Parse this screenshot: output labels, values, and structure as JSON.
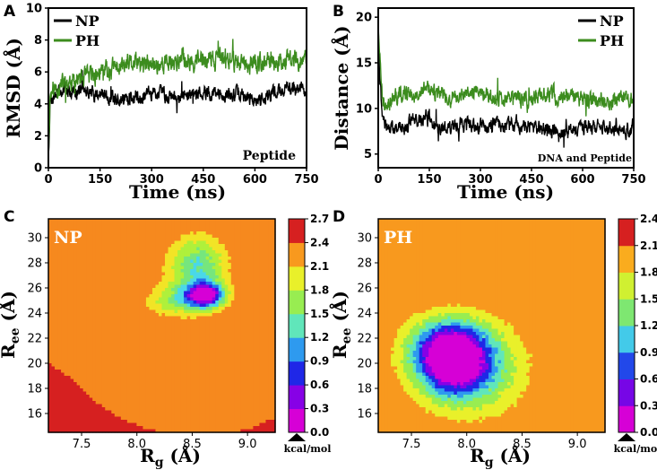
{
  "panels": {
    "A": "A",
    "B": "B",
    "C": "C",
    "D": "D"
  },
  "chart_data": [
    {
      "id": "A",
      "type": "line",
      "xlabel": "Time (ns)",
      "ylabel": "RMSD (Å)",
      "xlim": [
        0,
        750
      ],
      "ylim": [
        0,
        10
      ],
      "xticks": [
        0,
        150,
        300,
        450,
        600,
        750
      ],
      "yticks": [
        0,
        2,
        4,
        6,
        8,
        10
      ],
      "annotation": "Peptide",
      "legend_position": "top-left",
      "series": [
        {
          "name": "NP",
          "color": "#000000",
          "anchors": [
            [
              0,
              0.4
            ],
            [
              5,
              4.2
            ],
            [
              20,
              4.6
            ],
            [
              50,
              4.9
            ],
            [
              100,
              4.8
            ],
            [
              150,
              4.6
            ],
            [
              200,
              4.3
            ],
            [
              250,
              4.4
            ],
            [
              300,
              4.7
            ],
            [
              350,
              4.6
            ],
            [
              400,
              4.5
            ],
            [
              450,
              4.8
            ],
            [
              500,
              4.5
            ],
            [
              550,
              4.6
            ],
            [
              600,
              4.2
            ],
            [
              650,
              4.7
            ],
            [
              700,
              5.0
            ],
            [
              750,
              4.9
            ]
          ],
          "noise": 0.45,
          "seed": 7
        },
        {
          "name": "PH",
          "color": "#3c8c1e",
          "anchors": [
            [
              0,
              0.6
            ],
            [
              5,
              4.6
            ],
            [
              20,
              5.0
            ],
            [
              50,
              5.3
            ],
            [
              100,
              5.6
            ],
            [
              150,
              5.9
            ],
            [
              200,
              6.3
            ],
            [
              250,
              6.5
            ],
            [
              300,
              6.4
            ],
            [
              350,
              6.6
            ],
            [
              400,
              6.8
            ],
            [
              450,
              6.7
            ],
            [
              500,
              6.9
            ],
            [
              550,
              6.6
            ],
            [
              600,
              6.5
            ],
            [
              650,
              6.6
            ],
            [
              700,
              6.8
            ],
            [
              750,
              6.7
            ]
          ],
          "noise": 0.6,
          "seed": 11
        }
      ]
    },
    {
      "id": "B",
      "type": "line",
      "xlabel": "Time (ns)",
      "ylabel": "Distance (Å)",
      "xlim": [
        0,
        750
      ],
      "ylim": [
        3.5,
        21
      ],
      "xticks": [
        0,
        150,
        300,
        450,
        600,
        750
      ],
      "yticks": [
        5,
        10,
        15,
        20
      ],
      "annotation": "DNA and Peptide",
      "legend_position": "top-right",
      "series": [
        {
          "name": "NP",
          "color": "#000000",
          "anchors": [
            [
              0,
              20.0
            ],
            [
              4,
              14.0
            ],
            [
              12,
              9.0
            ],
            [
              30,
              8.0
            ],
            [
              70,
              7.8
            ],
            [
              100,
              8.6
            ],
            [
              140,
              9.0
            ],
            [
              180,
              7.7
            ],
            [
              230,
              8.2
            ],
            [
              300,
              7.9
            ],
            [
              350,
              8.2
            ],
            [
              400,
              8.4
            ],
            [
              450,
              7.9
            ],
            [
              500,
              7.6
            ],
            [
              550,
              7.3
            ],
            [
              600,
              7.8
            ],
            [
              650,
              7.9
            ],
            [
              700,
              7.8
            ],
            [
              750,
              7.5
            ]
          ],
          "noise": 0.8,
          "seed": 21
        },
        {
          "name": "PH",
          "color": "#3c8c1e",
          "anchors": [
            [
              0,
              19.5
            ],
            [
              4,
              16.0
            ],
            [
              12,
              11.0
            ],
            [
              30,
              10.8
            ],
            [
              70,
              11.6
            ],
            [
              100,
              11.8
            ],
            [
              150,
              12.0
            ],
            [
              200,
              11.3
            ],
            [
              250,
              11.6
            ],
            [
              300,
              11.8
            ],
            [
              350,
              11.0
            ],
            [
              400,
              10.9
            ],
            [
              450,
              11.3
            ],
            [
              500,
              11.4
            ],
            [
              550,
              11.6
            ],
            [
              600,
              10.9
            ],
            [
              650,
              10.8
            ],
            [
              700,
              11.1
            ],
            [
              750,
              11.2
            ]
          ],
          "noise": 0.9,
          "seed": 33
        }
      ]
    },
    {
      "id": "C",
      "type": "heatmap",
      "label": "NP",
      "xlabel": "Rg (Å)",
      "ylabel": "Ree (Å)",
      "xlim": [
        7.2,
        9.25
      ],
      "ylim": [
        14.5,
        31.5
      ],
      "xticks": [
        7.5,
        8.0,
        8.5,
        9.0
      ],
      "yticks": [
        16,
        18,
        20,
        22,
        24,
        26,
        28,
        30
      ],
      "colorbar_ticks": [
        0.0,
        0.3,
        0.6,
        0.9,
        1.2,
        1.5,
        1.8,
        2.1,
        2.4,
        2.7
      ],
      "colorbar_max": 2.7,
      "colorbar_unit": "kcal/mol",
      "blobs": [
        {
          "cx": 8.62,
          "cy": 25.4,
          "sx": 0.12,
          "sy": 0.7,
          "amp": 2.5
        },
        {
          "cx": 8.55,
          "cy": 27.8,
          "sx": 0.18,
          "sy": 1.6,
          "amp": 1.2
        },
        {
          "cx": 8.35,
          "cy": 25.0,
          "sx": 0.18,
          "sy": 0.9,
          "amp": 0.8
        }
      ],
      "max_value": 2.7
    },
    {
      "id": "D",
      "type": "heatmap",
      "label": "PH",
      "xlabel": "Rg (Å)",
      "ylabel": "Ree (Å)",
      "xlim": [
        7.2,
        9.25
      ],
      "ylim": [
        14.5,
        31.5
      ],
      "xticks": [
        7.5,
        8.0,
        8.5,
        9.0
      ],
      "yticks": [
        16,
        18,
        20,
        22,
        24,
        26,
        28,
        30
      ],
      "colorbar_ticks": [
        0.0,
        0.3,
        0.6,
        0.9,
        1.2,
        1.5,
        1.8,
        2.1,
        2.4
      ],
      "colorbar_max": 2.4,
      "colorbar_unit": "kcal/mol",
      "blobs": [
        {
          "cx": 7.88,
          "cy": 20.3,
          "sx": 0.22,
          "sy": 1.8,
          "amp": 2.3
        },
        {
          "cx": 8.05,
          "cy": 19.5,
          "sx": 0.35,
          "sy": 2.6,
          "amp": 0.9
        },
        {
          "cx": 7.75,
          "cy": 21.5,
          "sx": 0.25,
          "sy": 1.5,
          "amp": 0.6
        }
      ],
      "max_value": 2.4
    }
  ]
}
